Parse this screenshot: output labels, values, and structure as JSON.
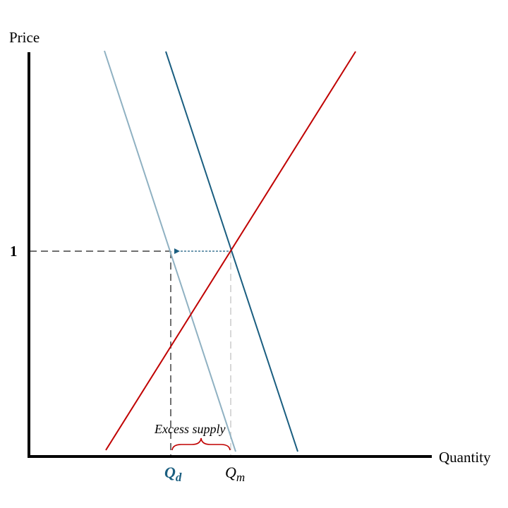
{
  "axes": {
    "y_label": "Price",
    "x_label": "Quantity"
  },
  "ticks": {
    "price_tick": "1",
    "qd_main": "Q",
    "qd_sub": "d",
    "qm_main": "Q",
    "qm_sub": "m"
  },
  "annotations": {
    "excess_supply": "Excess supply"
  },
  "colors": {
    "axis": "#000000",
    "supply": "#c00000",
    "demand_original": "#1a5e80",
    "demand_shifted": "#8fb1c2",
    "dashed_guide": "#404040",
    "dashed_light": "#cccccc",
    "arrow": "#1a5e80",
    "brace": "#c00000",
    "qd_label": "#1a5e80"
  },
  "lines": [
    "supply-line",
    "demand-original-line",
    "demand-shifted-line"
  ]
}
